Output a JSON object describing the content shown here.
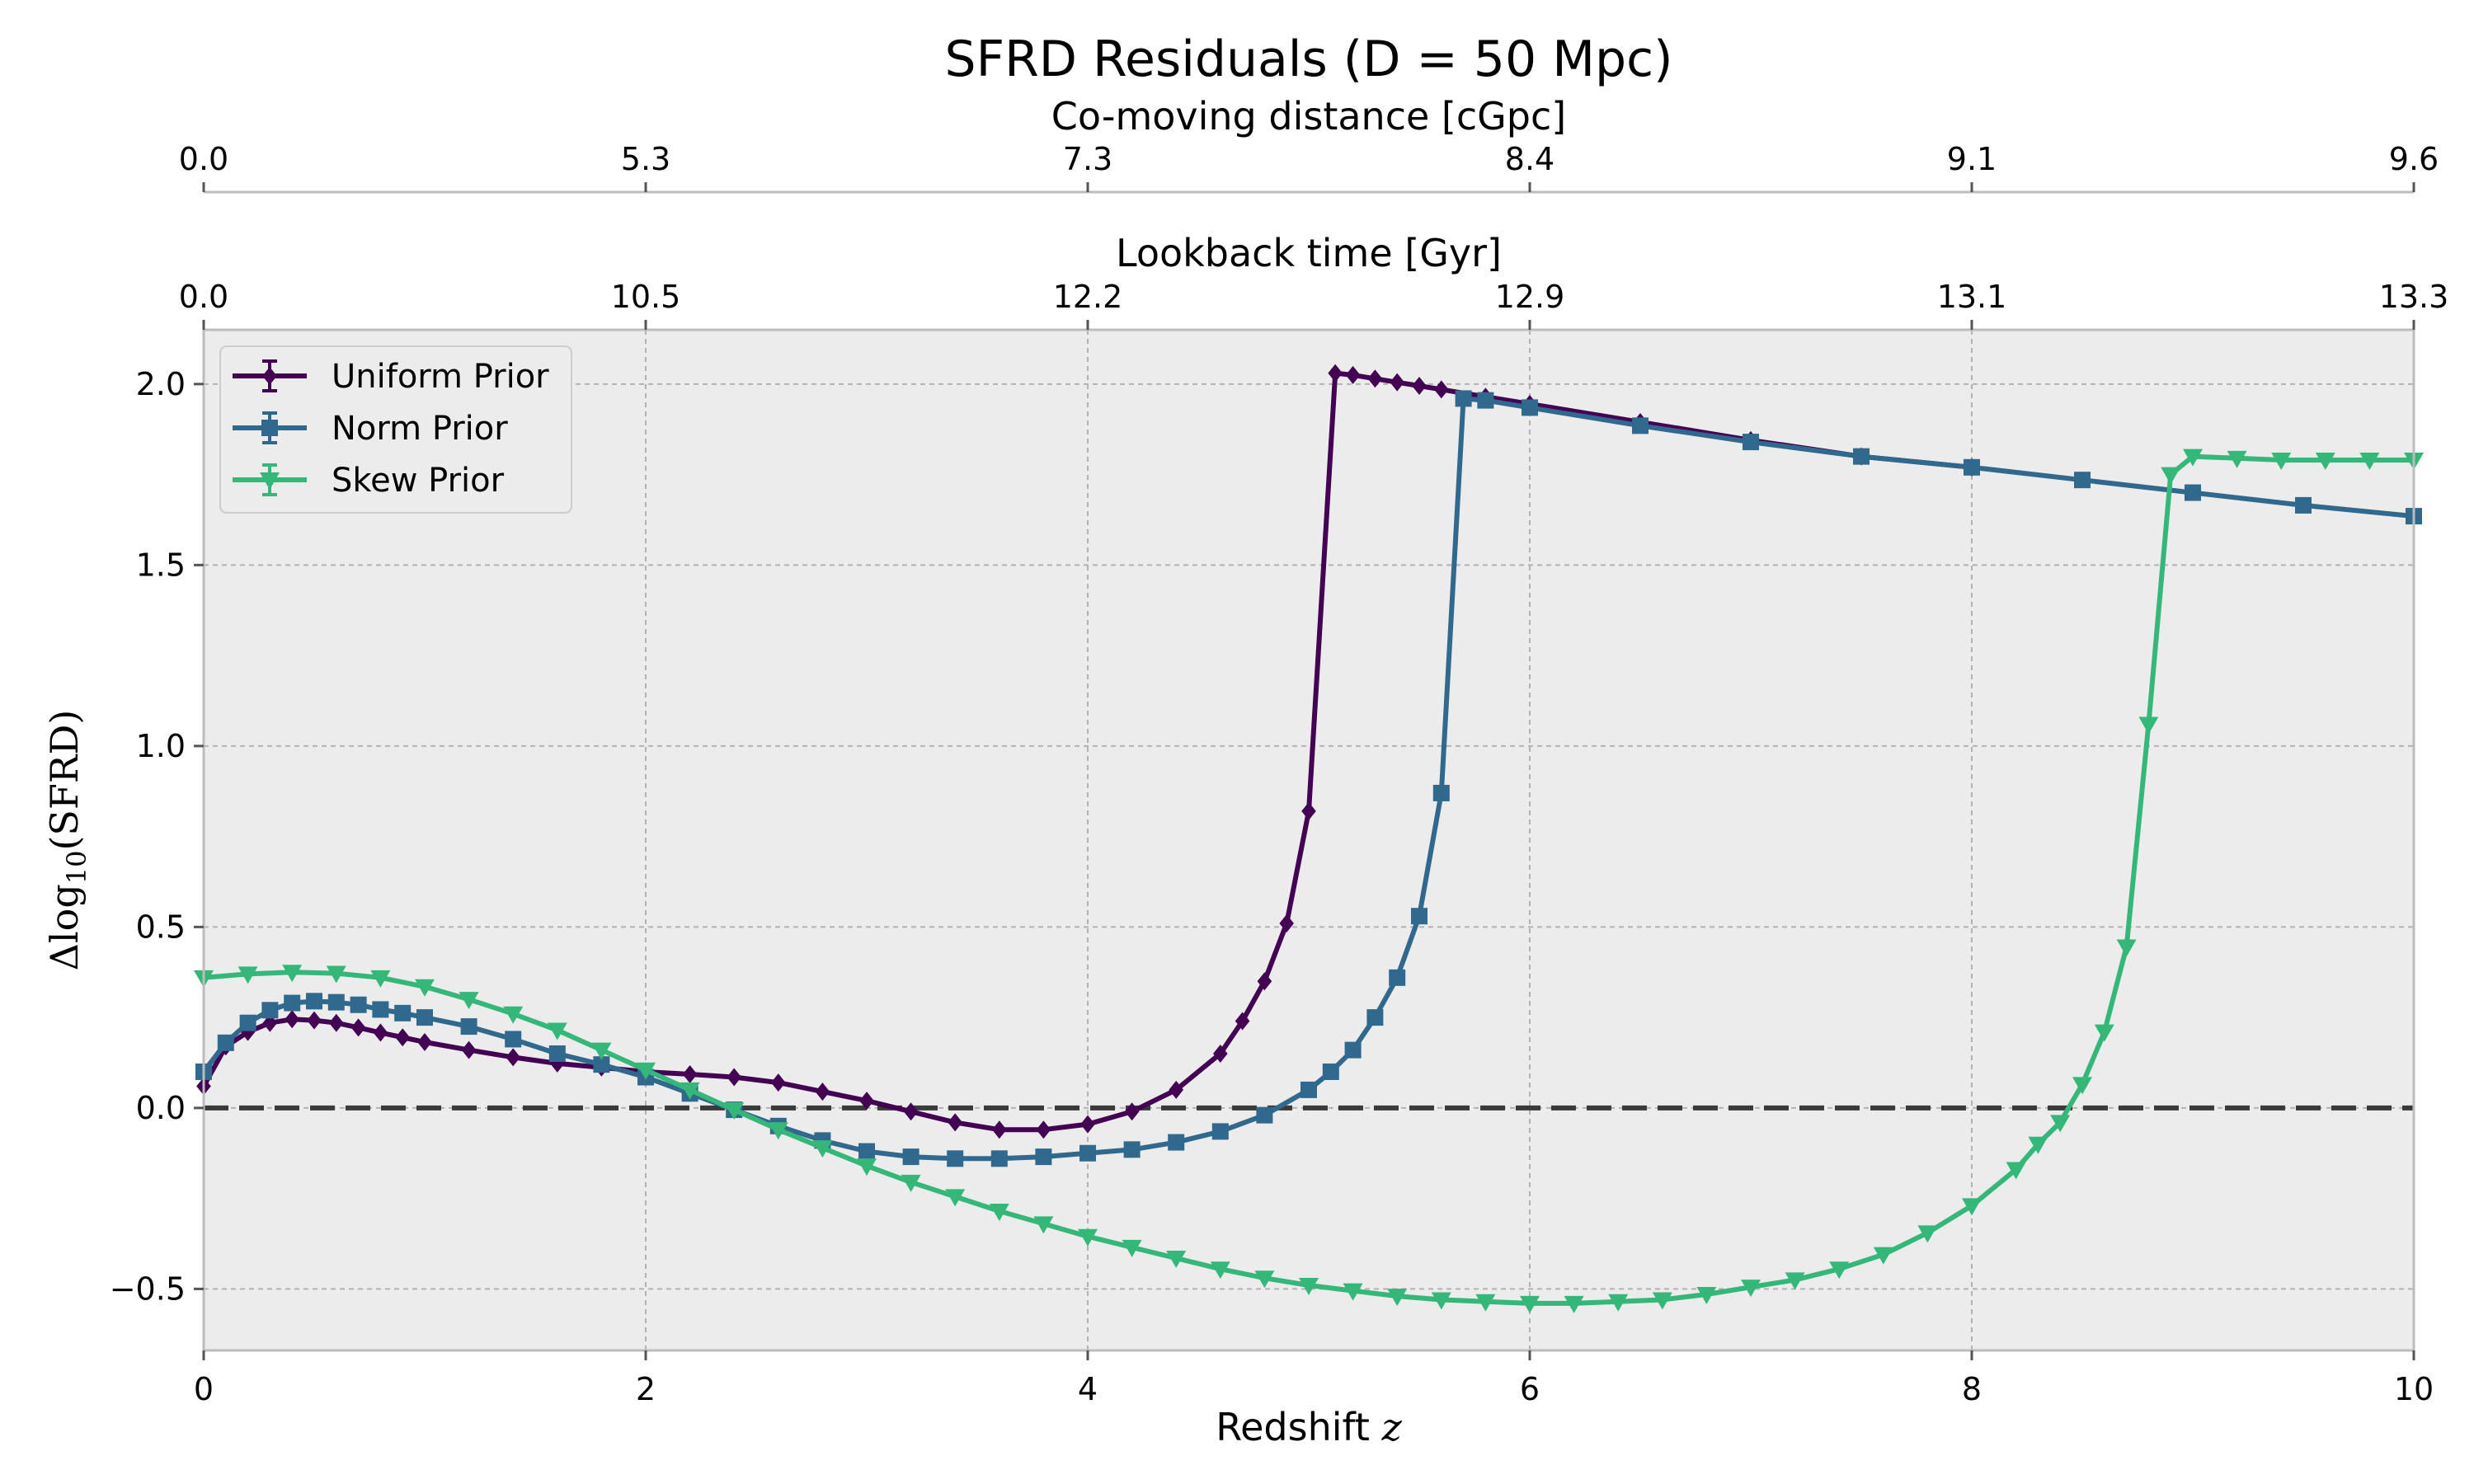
{
  "chart_data": {
    "type": "line",
    "title": "SFRD Residuals (D = 50 Mpc)",
    "xlabel": "Redshift",
    "xlabel_var": "z",
    "ylabel": "Δlog10(SFRD)",
    "ylabel_parts": {
      "prefix": "Δlog",
      "sub": "10",
      "suffix": "(SFRD)"
    },
    "xlim": [
      0,
      10
    ],
    "ylim": [
      -0.67,
      2.15
    ],
    "grid": true,
    "legend_position": "top-left",
    "x_ticks": [
      0,
      2,
      4,
      6,
      8,
      10
    ],
    "y_ticks": [
      -0.5,
      0.0,
      0.5,
      1.0,
      1.5,
      2.0
    ],
    "y_tick_labels": [
      "−0.5",
      "0.0",
      "0.5",
      "1.0",
      "1.5",
      "2.0"
    ],
    "reference_line": {
      "y": 0.0,
      "style": "dashed",
      "color": "#3a3a3a"
    },
    "top_axes": [
      {
        "label": "Lookback time [Gyr]",
        "tick_positions_z": [
          0,
          2,
          4,
          6,
          8,
          10
        ],
        "tick_labels": [
          "0.0",
          "10.5",
          "12.2",
          "12.9",
          "13.1",
          "13.3"
        ]
      },
      {
        "label": "Co-moving distance [cGpc]",
        "tick_positions_z": [
          0,
          2,
          4,
          6,
          8,
          10
        ],
        "tick_labels": [
          "0.0",
          "5.3",
          "7.3",
          "8.4",
          "9.1",
          "9.6"
        ]
      }
    ],
    "series": [
      {
        "name": "Uniform Prior",
        "color": "#440154",
        "marker": "diamond",
        "points": [
          [
            0,
            0.06
          ],
          [
            0.1,
            0.17
          ],
          [
            0.2,
            0.21
          ],
          [
            0.3,
            0.235
          ],
          [
            0.4,
            0.245
          ],
          [
            0.5,
            0.242
          ],
          [
            0.6,
            0.235
          ],
          [
            0.7,
            0.222
          ],
          [
            0.8,
            0.208
          ],
          [
            0.9,
            0.195
          ],
          [
            1.0,
            0.182
          ],
          [
            1.2,
            0.16
          ],
          [
            1.4,
            0.14
          ],
          [
            1.6,
            0.123
          ],
          [
            1.8,
            0.112
          ],
          [
            2.0,
            0.1
          ],
          [
            2.2,
            0.093
          ],
          [
            2.4,
            0.085
          ],
          [
            2.6,
            0.07
          ],
          [
            2.8,
            0.045
          ],
          [
            3.0,
            0.02
          ],
          [
            3.2,
            -0.01
          ],
          [
            3.4,
            -0.04
          ],
          [
            3.6,
            -0.06
          ],
          [
            3.8,
            -0.06
          ],
          [
            4.0,
            -0.045
          ],
          [
            4.2,
            -0.01
          ],
          [
            4.4,
            0.05
          ],
          [
            4.6,
            0.15
          ],
          [
            4.7,
            0.24
          ],
          [
            4.8,
            0.35
          ],
          [
            4.9,
            0.51
          ],
          [
            5.0,
            0.82
          ],
          [
            5.12,
            2.03
          ],
          [
            5.2,
            2.025
          ],
          [
            5.3,
            2.015
          ],
          [
            5.4,
            2.005
          ],
          [
            5.5,
            1.995
          ],
          [
            5.6,
            1.985
          ],
          [
            5.8,
            1.965
          ],
          [
            6.0,
            1.945
          ],
          [
            6.5,
            1.895
          ],
          [
            7.0,
            1.845
          ],
          [
            7.5,
            1.8
          ],
          [
            8.0,
            1.77
          ]
        ]
      },
      {
        "name": "Norm Prior",
        "color": "#31688e",
        "marker": "square",
        "points": [
          [
            0,
            0.1
          ],
          [
            0.1,
            0.18
          ],
          [
            0.2,
            0.235
          ],
          [
            0.3,
            0.27
          ],
          [
            0.4,
            0.29
          ],
          [
            0.5,
            0.295
          ],
          [
            0.6,
            0.292
          ],
          [
            0.7,
            0.285
          ],
          [
            0.8,
            0.272
          ],
          [
            0.9,
            0.262
          ],
          [
            1.0,
            0.25
          ],
          [
            1.2,
            0.225
          ],
          [
            1.4,
            0.19
          ],
          [
            1.6,
            0.15
          ],
          [
            1.8,
            0.12
          ],
          [
            2.0,
            0.085
          ],
          [
            2.2,
            0.04
          ],
          [
            2.4,
            -0.005
          ],
          [
            2.6,
            -0.05
          ],
          [
            2.8,
            -0.09
          ],
          [
            3.0,
            -0.12
          ],
          [
            3.2,
            -0.135
          ],
          [
            3.4,
            -0.14
          ],
          [
            3.6,
            -0.14
          ],
          [
            3.8,
            -0.135
          ],
          [
            4.0,
            -0.125
          ],
          [
            4.2,
            -0.115
          ],
          [
            4.4,
            -0.095
          ],
          [
            4.6,
            -0.065
          ],
          [
            4.8,
            -0.02
          ],
          [
            5.0,
            0.05
          ],
          [
            5.1,
            0.1
          ],
          [
            5.2,
            0.16
          ],
          [
            5.3,
            0.25
          ],
          [
            5.4,
            0.36
          ],
          [
            5.5,
            0.53
          ],
          [
            5.6,
            0.87
          ],
          [
            5.7,
            1.96
          ],
          [
            5.8,
            1.955
          ],
          [
            6.0,
            1.935
          ],
          [
            6.5,
            1.885
          ],
          [
            7.0,
            1.84
          ],
          [
            7.5,
            1.8
          ],
          [
            8.0,
            1.77
          ],
          [
            8.5,
            1.735
          ],
          [
            9.0,
            1.7
          ],
          [
            9.5,
            1.665
          ],
          [
            10.0,
            1.635
          ]
        ]
      },
      {
        "name": "Skew Prior",
        "color": "#35b779",
        "marker": "triangle_down",
        "points": [
          [
            0,
            0.36
          ],
          [
            0.2,
            0.37
          ],
          [
            0.4,
            0.375
          ],
          [
            0.6,
            0.372
          ],
          [
            0.8,
            0.36
          ],
          [
            1.0,
            0.335
          ],
          [
            1.2,
            0.3
          ],
          [
            1.4,
            0.26
          ],
          [
            1.6,
            0.215
          ],
          [
            1.8,
            0.16
          ],
          [
            2.0,
            0.105
          ],
          [
            2.2,
            0.05
          ],
          [
            2.4,
            -0.005
          ],
          [
            2.6,
            -0.06
          ],
          [
            2.8,
            -0.11
          ],
          [
            3.0,
            -0.16
          ],
          [
            3.2,
            -0.205
          ],
          [
            3.4,
            -0.245
          ],
          [
            3.6,
            -0.285
          ],
          [
            3.8,
            -0.32
          ],
          [
            4.0,
            -0.355
          ],
          [
            4.2,
            -0.385
          ],
          [
            4.4,
            -0.415
          ],
          [
            4.6,
            -0.445
          ],
          [
            4.8,
            -0.47
          ],
          [
            5.0,
            -0.49
          ],
          [
            5.2,
            -0.505
          ],
          [
            5.4,
            -0.52
          ],
          [
            5.6,
            -0.53
          ],
          [
            5.8,
            -0.535
          ],
          [
            6.0,
            -0.54
          ],
          [
            6.2,
            -0.54
          ],
          [
            6.4,
            -0.535
          ],
          [
            6.6,
            -0.53
          ],
          [
            6.8,
            -0.515
          ],
          [
            7.0,
            -0.495
          ],
          [
            7.2,
            -0.475
          ],
          [
            7.4,
            -0.445
          ],
          [
            7.6,
            -0.405
          ],
          [
            7.8,
            -0.345
          ],
          [
            8.0,
            -0.27
          ],
          [
            8.2,
            -0.17
          ],
          [
            8.3,
            -0.1
          ],
          [
            8.4,
            -0.04
          ],
          [
            8.5,
            0.065
          ],
          [
            8.6,
            0.21
          ],
          [
            8.7,
            0.445
          ],
          [
            8.8,
            1.06
          ],
          [
            8.9,
            1.75
          ],
          [
            9.0,
            1.8
          ],
          [
            9.2,
            1.795
          ],
          [
            9.4,
            1.79
          ],
          [
            9.6,
            1.79
          ],
          [
            9.8,
            1.79
          ],
          [
            10.0,
            1.79
          ]
        ]
      }
    ]
  }
}
